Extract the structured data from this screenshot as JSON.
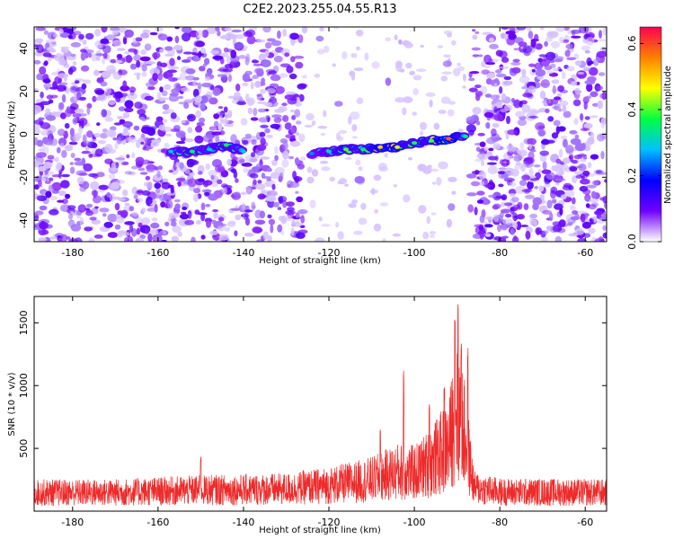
{
  "title": "C2E2.2023.255.04.55.R13",
  "colors": {
    "snr_line": "#ee2a2a",
    "blob_purple": "#6a1bff",
    "blob_light": "#c8a8ff"
  },
  "chart_data": [
    {
      "type": "heatmap",
      "xlabel": "Height of straight line (km)",
      "ylabel": "Frequency (Hz)",
      "xlim": [
        -189,
        -55
      ],
      "ylim": [
        -50,
        50
      ],
      "xticks": [
        -180,
        -160,
        -140,
        -120,
        -100,
        -80,
        -60
      ],
      "yticks": [
        -40,
        -20,
        0,
        20,
        40
      ],
      "colorbar": {
        "label": "Normalized spectral amplitude",
        "range": [
          0,
          0.65
        ],
        "ticks": [
          "0.0",
          "0.2",
          "0.4",
          "0.6"
        ],
        "colormap": [
          "#ffffff",
          "#7000ff",
          "#0000ff",
          "#00c0ff",
          "#00ff40",
          "#ffff00",
          "#ff8000",
          "#ff0050"
        ]
      },
      "signal_track": [
        {
          "x": -157,
          "y": -8,
          "a": 0.28
        },
        {
          "x": -152,
          "y": -8,
          "a": 0.36
        },
        {
          "x": -148,
          "y": -7,
          "a": 0.3
        },
        {
          "x": -144,
          "y": -5,
          "a": 0.38
        },
        {
          "x": -140,
          "y": -8,
          "a": 0.3
        },
        {
          "x": -124,
          "y": -9,
          "a": 0.25
        },
        {
          "x": -120,
          "y": -8,
          "a": 0.3
        },
        {
          "x": -116,
          "y": -7,
          "a": 0.4
        },
        {
          "x": -112,
          "y": -7,
          "a": 0.35
        },
        {
          "x": -108,
          "y": -6,
          "a": 0.5
        },
        {
          "x": -104,
          "y": -6,
          "a": 0.45
        },
        {
          "x": -100,
          "y": -4,
          "a": 0.38
        },
        {
          "x": -96,
          "y": -3,
          "a": 0.4
        },
        {
          "x": -92,
          "y": -2,
          "a": 0.58
        },
        {
          "x": -88,
          "y": -1,
          "a": 0.35
        }
      ],
      "quiet_band": [
        -126,
        -87
      ]
    },
    {
      "type": "line",
      "xlabel": "Height of straight line (km)",
      "ylabel": "SNR (10 * v/v)",
      "xlim": [
        -189,
        -55
      ],
      "ylim": [
        0,
        1710
      ],
      "xticks": [
        -180,
        -160,
        -140,
        -120,
        -100,
        -80,
        -60
      ],
      "yticks": [
        500,
        1000,
        1500
      ],
      "series": [
        {
          "values": {
            "baseline": [
              {
                "x": -189,
                "y": 160
              },
              {
                "x": -170,
                "y": 160
              },
              {
                "x": -150,
                "y": 180
              },
              {
                "x": -130,
                "y": 190
              },
              {
                "x": -120,
                "y": 220
              },
              {
                "x": -110,
                "y": 270
              },
              {
                "x": -104,
                "y": 340
              },
              {
                "x": -100,
                "y": 330
              },
              {
                "x": -96,
                "y": 420
              },
              {
                "x": -92,
                "y": 560
              },
              {
                "x": -90,
                "y": 900
              },
              {
                "x": -88,
                "y": 620
              },
              {
                "x": -86,
                "y": 200
              },
              {
                "x": -80,
                "y": 165
              },
              {
                "x": -55,
                "y": 160
              }
            ],
            "peaks": [
              {
                "x": -102.5,
                "y": 1180
              },
              {
                "x": -96.5,
                "y": 940
              },
              {
                "x": -93,
                "y": 1010
              },
              {
                "x": -90.5,
                "y": 1710
              },
              {
                "x": -89.8,
                "y": 1700
              },
              {
                "x": -89,
                "y": 1480
              },
              {
                "x": -87.5,
                "y": 1370
              },
              {
                "x": -108,
                "y": 680
              },
              {
                "x": -150,
                "y": 440
              }
            ]
          }
        }
      ]
    }
  ]
}
